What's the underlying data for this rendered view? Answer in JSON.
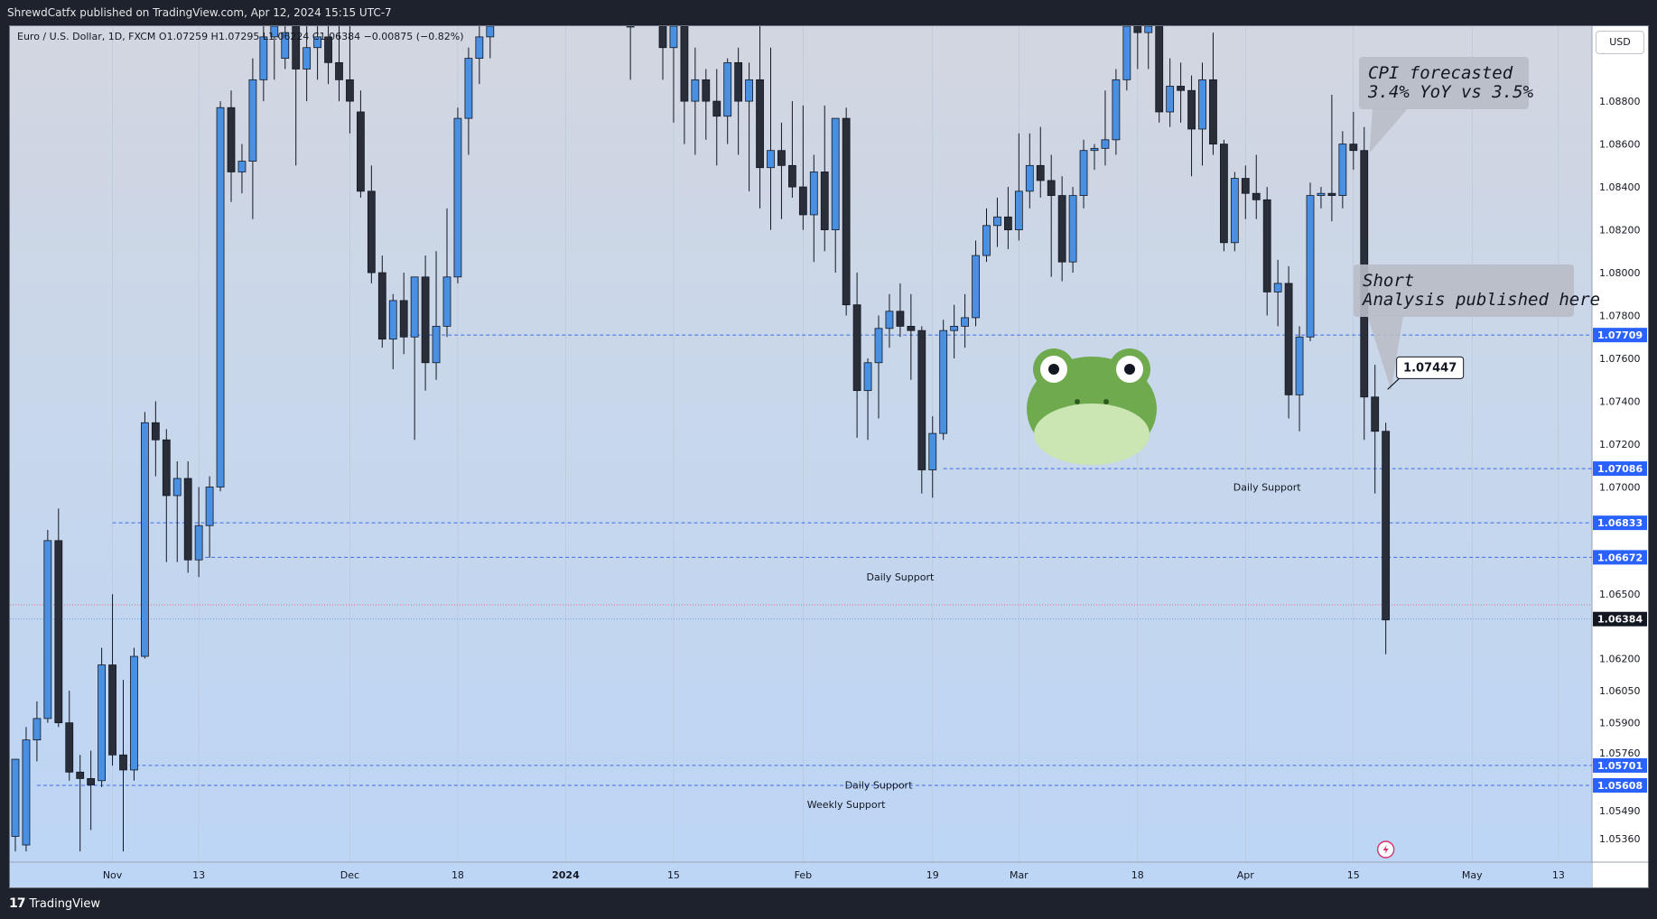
{
  "header": {
    "publish_line": "ShrewdCatfx published on TradingView.com, Apr 12, 2024 15:15 UTC-7"
  },
  "legend": {
    "text": "Euro / U.S. Dollar, 1D, FXCM  O1.07259  H1.07295  L1.06224  C1.06384  −0.00875 (−0.82%)"
  },
  "currency": "USD",
  "footer": {
    "brand": "TradingView",
    "logo_glyph": "17"
  },
  "colors": {
    "bull": "#4a90e2",
    "bear": "#2a2e39",
    "level_line": "#3d6ce6",
    "level_label_bg": "#2962ff"
  },
  "chart_data": {
    "type": "candlestick",
    "symbol": "EURUSD",
    "ylim": [
      1.0525,
      1.0915
    ],
    "y_ticks": [
      1.0536,
      1.0549,
      1.0576,
      1.059,
      1.0605,
      1.062,
      1.065,
      1.07,
      1.072,
      1.074,
      1.076,
      1.078,
      1.08,
      1.082,
      1.084,
      1.086,
      1.088
    ],
    "x_labels": [
      {
        "label": "Nov",
        "index": 9
      },
      {
        "label": "13",
        "index": 17
      },
      {
        "label": "Dec",
        "index": 31
      },
      {
        "label": "18",
        "index": 41
      },
      {
        "label": "2024",
        "index": 51
      },
      {
        "label": "15",
        "index": 61
      },
      {
        "label": "Feb",
        "index": 73
      },
      {
        "label": "19",
        "index": 85
      },
      {
        "label": "Mar",
        "index": 93
      },
      {
        "label": "18",
        "index": 104
      },
      {
        "label": "Apr",
        "index": 114
      },
      {
        "label": "15",
        "index": 124
      },
      {
        "label": "May",
        "index": 135
      },
      {
        "label": "13",
        "index": 143
      }
    ],
    "candles": [
      {
        "i": 0,
        "o": 1.0537,
        "h": 1.057,
        "l": 1.053,
        "c": 1.0573
      },
      {
        "i": 1,
        "o": 1.0533,
        "h": 1.0588,
        "l": 1.053,
        "c": 1.0582
      },
      {
        "i": 2,
        "o": 1.0582,
        "h": 1.06,
        "l": 1.0572,
        "c": 1.0592
      },
      {
        "i": 3,
        "o": 1.0592,
        "h": 1.068,
        "l": 1.059,
        "c": 1.0675
      },
      {
        "i": 4,
        "o": 1.0675,
        "h": 1.069,
        "l": 1.0588,
        "c": 1.059
      },
      {
        "i": 5,
        "o": 1.059,
        "h": 1.0605,
        "l": 1.0563,
        "c": 1.0567
      },
      {
        "i": 6,
        "o": 1.0567,
        "h": 1.0575,
        "l": 1.053,
        "c": 1.0564
      },
      {
        "i": 7,
        "o": 1.0564,
        "h": 1.0577,
        "l": 1.054,
        "c": 1.0561
      },
      {
        "i": 8,
        "o": 1.0563,
        "h": 1.0625,
        "l": 1.056,
        "c": 1.0617
      },
      {
        "i": 9,
        "o": 1.0617,
        "h": 1.065,
        "l": 1.057,
        "c": 1.0575
      },
      {
        "i": 10,
        "o": 1.0575,
        "h": 1.061,
        "l": 1.053,
        "c": 1.0568
      },
      {
        "i": 11,
        "o": 1.0568,
        "h": 1.0625,
        "l": 1.0563,
        "c": 1.0621
      },
      {
        "i": 12,
        "o": 1.0621,
        "h": 1.0735,
        "l": 1.062,
        "c": 1.073
      },
      {
        "i": 13,
        "o": 1.073,
        "h": 1.074,
        "l": 1.0705,
        "c": 1.0722
      },
      {
        "i": 14,
        "o": 1.0722,
        "h": 1.0727,
        "l": 1.0665,
        "c": 1.0696
      },
      {
        "i": 15,
        "o": 1.0696,
        "h": 1.0712,
        "l": 1.0665,
        "c": 1.0704
      },
      {
        "i": 16,
        "o": 1.0704,
        "h": 1.0712,
        "l": 1.066,
        "c": 1.0666
      },
      {
        "i": 17,
        "o": 1.0666,
        "h": 1.07,
        "l": 1.0658,
        "c": 1.0682
      },
      {
        "i": 18,
        "o": 1.0682,
        "h": 1.0705,
        "l": 1.0667,
        "c": 1.07
      },
      {
        "i": 19,
        "o": 1.07,
        "h": 1.088,
        "l": 1.0698,
        "c": 1.0877
      },
      {
        "i": 20,
        "o": 1.0877,
        "h": 1.0885,
        "l": 1.0833,
        "c": 1.0847
      },
      {
        "i": 21,
        "o": 1.0847,
        "h": 1.086,
        "l": 1.0837,
        "c": 1.0852
      },
      {
        "i": 22,
        "o": 1.0852,
        "h": 1.09,
        "l": 1.0825,
        "c": 1.089
      },
      {
        "i": 23,
        "o": 1.089,
        "h": 1.0915,
        "l": 1.088,
        "c": 1.091
      },
      {
        "i": 24,
        "o": 1.091,
        "h": 1.0915,
        "l": 1.089,
        "c": 1.0915
      },
      {
        "i": 25,
        "o": 1.09,
        "h": 1.0915,
        "l": 1.0895,
        "c": 1.0912
      },
      {
        "i": 26,
        "o": 1.0915,
        "h": 1.0915,
        "l": 1.085,
        "c": 1.0895
      },
      {
        "i": 27,
        "o": 1.0895,
        "h": 1.0915,
        "l": 1.088,
        "c": 1.0905
      },
      {
        "i": 28,
        "o": 1.0905,
        "h": 1.0915,
        "l": 1.089,
        "c": 1.091
      },
      {
        "i": 29,
        "o": 1.091,
        "h": 1.0915,
        "l": 1.0888,
        "c": 1.0898
      },
      {
        "i": 30,
        "o": 1.0898,
        "h": 1.0915,
        "l": 1.088,
        "c": 1.089
      },
      {
        "i": 31,
        "o": 1.089,
        "h": 1.0915,
        "l": 1.0865,
        "c": 1.088
      },
      {
        "i": 32,
        "o": 1.0875,
        "h": 1.0885,
        "l": 1.0835,
        "c": 1.0838
      },
      {
        "i": 33,
        "o": 1.0838,
        "h": 1.085,
        "l": 1.0795,
        "c": 1.08
      },
      {
        "i": 34,
        "o": 1.08,
        "h": 1.0808,
        "l": 1.0765,
        "c": 1.0769
      },
      {
        "i": 35,
        "o": 1.0769,
        "h": 1.079,
        "l": 1.0755,
        "c": 1.0787
      },
      {
        "i": 36,
        "o": 1.0787,
        "h": 1.08,
        "l": 1.0762,
        "c": 1.077
      },
      {
        "i": 37,
        "o": 1.077,
        "h": 1.0798,
        "l": 1.0722,
        "c": 1.0798
      },
      {
        "i": 38,
        "o": 1.0798,
        "h": 1.0808,
        "l": 1.0745,
        "c": 1.0758
      },
      {
        "i": 39,
        "o": 1.0758,
        "h": 1.081,
        "l": 1.075,
        "c": 1.0775
      },
      {
        "i": 40,
        "o": 1.0775,
        "h": 1.083,
        "l": 1.077,
        "c": 1.0798
      },
      {
        "i": 41,
        "o": 1.0798,
        "h": 1.0877,
        "l": 1.0795,
        "c": 1.0872
      },
      {
        "i": 42,
        "o": 1.0872,
        "h": 1.0905,
        "l": 1.0855,
        "c": 1.09
      },
      {
        "i": 43,
        "o": 1.09,
        "h": 1.0915,
        "l": 1.0888,
        "c": 1.091
      },
      {
        "i": 44,
        "o": 1.091,
        "h": 1.0915,
        "l": 1.09,
        "c": 1.0915
      },
      {
        "i": 57,
        "o": 1.0915,
        "h": 1.0915,
        "l": 1.089,
        "c": 1.0915
      },
      {
        "i": 60,
        "o": 1.0915,
        "h": 1.0915,
        "l": 1.089,
        "c": 1.0905
      },
      {
        "i": 61,
        "o": 1.0905,
        "h": 1.0915,
        "l": 1.087,
        "c": 1.0915
      },
      {
        "i": 62,
        "o": 1.0915,
        "h": 1.0915,
        "l": 1.086,
        "c": 1.088
      },
      {
        "i": 63,
        "o": 1.088,
        "h": 1.0905,
        "l": 1.0855,
        "c": 1.089
      },
      {
        "i": 64,
        "o": 1.089,
        "h": 1.0895,
        "l": 1.0862,
        "c": 1.088
      },
      {
        "i": 65,
        "o": 1.088,
        "h": 1.0895,
        "l": 1.085,
        "c": 1.0873
      },
      {
        "i": 66,
        "o": 1.0873,
        "h": 1.09,
        "l": 1.086,
        "c": 1.0898
      },
      {
        "i": 67,
        "o": 1.0898,
        "h": 1.0905,
        "l": 1.0855,
        "c": 1.088
      },
      {
        "i": 68,
        "o": 1.088,
        "h": 1.0898,
        "l": 1.0838,
        "c": 1.089
      },
      {
        "i": 69,
        "o": 1.089,
        "h": 1.0915,
        "l": 1.083,
        "c": 1.0849
      },
      {
        "i": 70,
        "o": 1.0849,
        "h": 1.0905,
        "l": 1.082,
        "c": 1.0857
      },
      {
        "i": 71,
        "o": 1.0857,
        "h": 1.087,
        "l": 1.0825,
        "c": 1.085
      },
      {
        "i": 72,
        "o": 1.085,
        "h": 1.088,
        "l": 1.0835,
        "c": 1.084
      },
      {
        "i": 73,
        "o": 1.084,
        "h": 1.0878,
        "l": 1.082,
        "c": 1.0827
      },
      {
        "i": 74,
        "o": 1.0827,
        "h": 1.0855,
        "l": 1.0805,
        "c": 1.0847
      },
      {
        "i": 75,
        "o": 1.0847,
        "h": 1.0878,
        "l": 1.081,
        "c": 1.082
      },
      {
        "i": 76,
        "o": 1.082,
        "h": 1.0872,
        "l": 1.08,
        "c": 1.0872
      },
      {
        "i": 77,
        "o": 1.0872,
        "h": 1.0877,
        "l": 1.078,
        "c": 1.0785
      },
      {
        "i": 78,
        "o": 1.0785,
        "h": 1.08,
        "l": 1.0723,
        "c": 1.0745
      },
      {
        "i": 79,
        "o": 1.0745,
        "h": 1.076,
        "l": 1.0722,
        "c": 1.0758
      },
      {
        "i": 80,
        "o": 1.0758,
        "h": 1.078,
        "l": 1.0732,
        "c": 1.0774
      },
      {
        "i": 81,
        "o": 1.0774,
        "h": 1.079,
        "l": 1.0765,
        "c": 1.0782
      },
      {
        "i": 82,
        "o": 1.0782,
        "h": 1.0795,
        "l": 1.077,
        "c": 1.0775
      },
      {
        "i": 83,
        "o": 1.0775,
        "h": 1.079,
        "l": 1.075,
        "c": 1.0773
      },
      {
        "i": 84,
        "o": 1.0773,
        "h": 1.0775,
        "l": 1.0697,
        "c": 1.0708
      },
      {
        "i": 85,
        "o": 1.0708,
        "h": 1.0733,
        "l": 1.0695,
        "c": 1.0725
      },
      {
        "i": 86,
        "o": 1.0725,
        "h": 1.0778,
        "l": 1.0722,
        "c": 1.0773
      },
      {
        "i": 87,
        "o": 1.0773,
        "h": 1.0785,
        "l": 1.076,
        "c": 1.0775
      },
      {
        "i": 88,
        "o": 1.0775,
        "h": 1.079,
        "l": 1.0765,
        "c": 1.0779
      },
      {
        "i": 89,
        "o": 1.0779,
        "h": 1.0815,
        "l": 1.0775,
        "c": 1.0808
      },
      {
        "i": 90,
        "o": 1.0808,
        "h": 1.083,
        "l": 1.0805,
        "c": 1.0822
      },
      {
        "i": 91,
        "o": 1.0822,
        "h": 1.0835,
        "l": 1.0812,
        "c": 1.0826
      },
      {
        "i": 92,
        "o": 1.0826,
        "h": 1.084,
        "l": 1.0811,
        "c": 1.082
      },
      {
        "i": 93,
        "o": 1.082,
        "h": 1.0865,
        "l": 1.0815,
        "c": 1.0838
      },
      {
        "i": 94,
        "o": 1.0838,
        "h": 1.0865,
        "l": 1.083,
        "c": 1.085
      },
      {
        "i": 95,
        "o": 1.085,
        "h": 1.0868,
        "l": 1.0835,
        "c": 1.0843
      },
      {
        "i": 96,
        "o": 1.0843,
        "h": 1.0855,
        "l": 1.0798,
        "c": 1.0836
      },
      {
        "i": 97,
        "o": 1.0836,
        "h": 1.0845,
        "l": 1.0796,
        "c": 1.0805
      },
      {
        "i": 98,
        "o": 1.0805,
        "h": 1.084,
        "l": 1.08,
        "c": 1.0836
      },
      {
        "i": 99,
        "o": 1.0836,
        "h": 1.0862,
        "l": 1.083,
        "c": 1.0857
      },
      {
        "i": 100,
        "o": 1.0857,
        "h": 1.086,
        "l": 1.0848,
        "c": 1.0858
      },
      {
        "i": 101,
        "o": 1.0858,
        "h": 1.0885,
        "l": 1.085,
        "c": 1.0862
      },
      {
        "i": 102,
        "o": 1.0862,
        "h": 1.0895,
        "l": 1.0855,
        "c": 1.089
      },
      {
        "i": 103,
        "o": 1.089,
        "h": 1.0915,
        "l": 1.0885,
        "c": 1.0915
      },
      {
        "i": 104,
        "o": 1.0915,
        "h": 1.0915,
        "l": 1.0895,
        "c": 1.0912
      },
      {
        "i": 105,
        "o": 1.0912,
        "h": 1.0915,
        "l": 1.0895,
        "c": 1.0915
      },
      {
        "i": 106,
        "o": 1.0915,
        "h": 1.0915,
        "l": 1.087,
        "c": 1.0875
      },
      {
        "i": 107,
        "o": 1.0875,
        "h": 1.09,
        "l": 1.0868,
        "c": 1.0887
      },
      {
        "i": 108,
        "o": 1.0887,
        "h": 1.0898,
        "l": 1.087,
        "c": 1.0885
      },
      {
        "i": 109,
        "o": 1.0885,
        "h": 1.0892,
        "l": 1.0845,
        "c": 1.0867
      },
      {
        "i": 110,
        "o": 1.0867,
        "h": 1.0898,
        "l": 1.085,
        "c": 1.089
      },
      {
        "i": 111,
        "o": 1.089,
        "h": 1.0912,
        "l": 1.0855,
        "c": 1.086
      },
      {
        "i": 112,
        "o": 1.086,
        "h": 1.0862,
        "l": 1.081,
        "c": 1.0814
      },
      {
        "i": 113,
        "o": 1.0814,
        "h": 1.0847,
        "l": 1.081,
        "c": 1.0844
      },
      {
        "i": 114,
        "o": 1.0844,
        "h": 1.085,
        "l": 1.0825,
        "c": 1.0837
      },
      {
        "i": 115,
        "o": 1.0837,
        "h": 1.0855,
        "l": 1.0825,
        "c": 1.0834
      },
      {
        "i": 116,
        "o": 1.0834,
        "h": 1.084,
        "l": 1.078,
        "c": 1.0791
      },
      {
        "i": 117,
        "o": 1.0791,
        "h": 1.0806,
        "l": 1.0775,
        "c": 1.0795
      },
      {
        "i": 118,
        "o": 1.0795,
        "h": 1.0803,
        "l": 1.0732,
        "c": 1.0743
      },
      {
        "i": 119,
        "o": 1.0743,
        "h": 1.0775,
        "l": 1.0726,
        "c": 1.077
      },
      {
        "i": 120,
        "o": 1.077,
        "h": 1.0842,
        "l": 1.0768,
        "c": 1.0836
      },
      {
        "i": 121,
        "o": 1.0836,
        "h": 1.084,
        "l": 1.083,
        "c": 1.0837
      },
      {
        "i": 122,
        "o": 1.0837,
        "h": 1.0883,
        "l": 1.0824,
        "c": 1.0836
      },
      {
        "i": 123,
        "o": 1.0836,
        "h": 1.0866,
        "l": 1.083,
        "c": 1.086
      },
      {
        "i": 124,
        "o": 1.086,
        "h": 1.0875,
        "l": 1.0848,
        "c": 1.0857
      },
      {
        "i": 125,
        "o": 1.0857,
        "h": 1.0868,
        "l": 1.0722,
        "c": 1.0742
      },
      {
        "i": 126,
        "o": 1.0742,
        "h": 1.0757,
        "l": 1.0697,
        "c": 1.0726
      },
      {
        "i": 127,
        "o": 1.0726,
        "h": 1.073,
        "l": 1.0622,
        "c": 1.0638
      }
    ],
    "levels": [
      {
        "price": 1.07709,
        "label": "1.07709",
        "x_start": 36
      },
      {
        "price": 1.07086,
        "label": "1.07086",
        "x_start": 86
      },
      {
        "price": 1.06833,
        "label": "1.06833",
        "x_start": 9
      },
      {
        "price": 1.06672,
        "label": "1.06672",
        "x_start": 17
      },
      {
        "price": 1.05701,
        "label": "1.05701",
        "x_start": 10
      },
      {
        "price": 1.05608,
        "label": "1.05608",
        "x_start": 2
      }
    ],
    "current_price": {
      "price": 1.06384,
      "label": "1.06384"
    },
    "dotted_line_price": 1.0645,
    "support_labels": [
      {
        "text": "Daily Support",
        "price": 1.07,
        "index": 116
      },
      {
        "text": "Daily Support",
        "price": 1.0658,
        "index": 82
      },
      {
        "text": "Daily Support",
        "price": 1.0561,
        "index": 80
      },
      {
        "text": "Weekly Support",
        "price": 1.0552,
        "index": 77
      }
    ],
    "annotations": [
      {
        "line1": "CPI forecasted",
        "line2": "3.4% YoY vs 3.5%",
        "anchor_index": 125,
        "anchor_price": 1.0856
      },
      {
        "line1": "Short",
        "line2": "Analysis published here",
        "anchor_index": 127,
        "anchor_price": 1.0745
      }
    ],
    "price_callout": {
      "label": "1.07447",
      "index": 127,
      "price": 1.07447
    }
  }
}
